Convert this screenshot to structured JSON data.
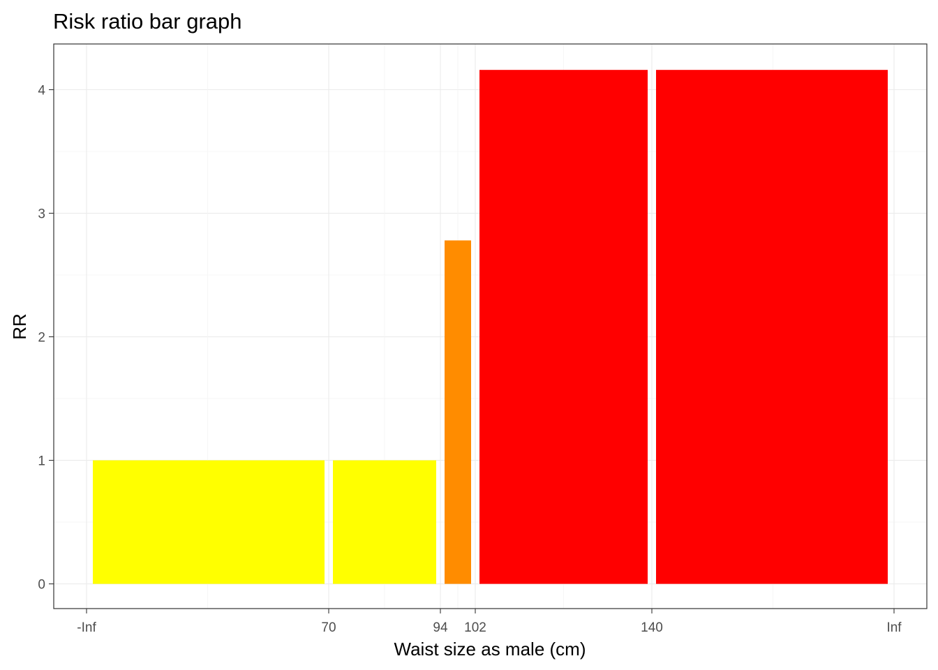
{
  "chart_data": {
    "type": "bar",
    "title": "Risk ratio bar graph",
    "xlabel": "Waist size as male (cm)",
    "ylabel": "RR",
    "x_tick_labels": [
      "-Inf",
      "70",
      "94",
      "102",
      "140",
      "Inf"
    ],
    "y_ticks": [
      0,
      1,
      2,
      3,
      4
    ],
    "ylim": [
      -0.2,
      4.37
    ],
    "grid": true,
    "bars": [
      {
        "x_from": "-Inf",
        "x_to": "70",
        "value": 1.0,
        "color": "#FFFF00"
      },
      {
        "x_from": "70",
        "x_to": "94",
        "value": 1.0,
        "color": "#FFFF00"
      },
      {
        "x_from": "94",
        "x_to": "102",
        "value": 2.78,
        "color": "#FF8C00"
      },
      {
        "x_from": "102",
        "x_to": "140",
        "value": 4.16,
        "color": "#FF0000"
      },
      {
        "x_from": "140",
        "x_to": "Inf",
        "value": 4.16,
        "color": "#FF0000"
      }
    ]
  }
}
